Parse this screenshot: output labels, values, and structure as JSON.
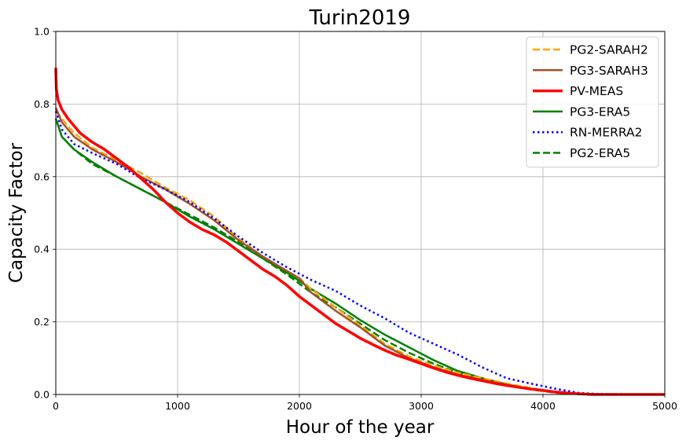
{
  "chart_data": {
    "type": "line",
    "title": "Turin2019",
    "xlabel": "Hour of the year",
    "ylabel": "Capacity Factor",
    "xlim": [
      0,
      5000
    ],
    "ylim": [
      0,
      1.0
    ],
    "xticks": [
      "0",
      "1000",
      "2000",
      "3000",
      "4000",
      "5000"
    ],
    "yticks": [
      "0.0",
      "0.2",
      "0.4",
      "0.6",
      "0.8",
      "1.0"
    ],
    "grid": true,
    "legend_position": "top-right",
    "series": [
      {
        "name": "PG2-SARAH2",
        "color": "#ffa500",
        "style": "dashed",
        "x": [
          0,
          50,
          150,
          300,
          500,
          700,
          900,
          1100,
          1300,
          1500,
          1700,
          1900,
          2000,
          2100,
          2300,
          2500,
          2700,
          2900,
          3100,
          3300,
          3500,
          3700,
          3900,
          4100,
          4300,
          4500,
          5000
        ],
        "y": [
          0.78,
          0.76,
          0.72,
          0.68,
          0.645,
          0.61,
          0.57,
          0.535,
          0.49,
          0.43,
          0.38,
          0.34,
          0.32,
          0.29,
          0.24,
          0.19,
          0.14,
          0.105,
          0.08,
          0.06,
          0.045,
          0.03,
          0.018,
          0.007,
          0.002,
          0.0,
          0.0
        ]
      },
      {
        "name": "PG3-SARAH3",
        "color": "#a0522d",
        "style": "solid",
        "x": [
          0,
          50,
          150,
          300,
          500,
          700,
          900,
          1100,
          1300,
          1500,
          1700,
          1900,
          2000,
          2100,
          2300,
          2500,
          2700,
          2900,
          3100,
          3300,
          3500,
          3700,
          3900,
          4100,
          4300,
          4500,
          5000
        ],
        "y": [
          0.79,
          0.75,
          0.71,
          0.675,
          0.64,
          0.6,
          0.565,
          0.525,
          0.48,
          0.425,
          0.38,
          0.34,
          0.32,
          0.28,
          0.23,
          0.185,
          0.135,
          0.1,
          0.075,
          0.055,
          0.04,
          0.027,
          0.015,
          0.006,
          0.002,
          0.0,
          0.0
        ]
      },
      {
        "name": "PV-MEAS",
        "color": "#ff0000",
        "style": "solid-thick",
        "x": [
          0,
          5,
          20,
          50,
          100,
          200,
          300,
          400,
          500,
          600,
          700,
          800,
          900,
          1000,
          1100,
          1200,
          1300,
          1400,
          1500,
          1600,
          1700,
          1800,
          1900,
          2000,
          2100,
          2200,
          2300,
          2400,
          2500,
          2600,
          2700,
          2800,
          2900,
          3000,
          3100,
          3200,
          3300,
          3400,
          3500,
          3600,
          3700,
          3800,
          3900,
          4000,
          4100,
          4200,
          4300,
          4400,
          5000
        ],
        "y": [
          0.9,
          0.84,
          0.81,
          0.785,
          0.76,
          0.72,
          0.695,
          0.675,
          0.65,
          0.625,
          0.595,
          0.565,
          0.53,
          0.5,
          0.475,
          0.455,
          0.44,
          0.42,
          0.395,
          0.37,
          0.345,
          0.325,
          0.3,
          0.27,
          0.245,
          0.22,
          0.195,
          0.175,
          0.155,
          0.138,
          0.122,
          0.108,
          0.097,
          0.085,
          0.073,
          0.062,
          0.053,
          0.045,
          0.038,
          0.031,
          0.025,
          0.02,
          0.015,
          0.011,
          0.007,
          0.004,
          0.002,
          0.0,
          0.0
        ]
      },
      {
        "name": "PG3-ERA5",
        "color": "#008000",
        "style": "solid",
        "x": [
          0,
          50,
          150,
          300,
          500,
          700,
          900,
          1100,
          1300,
          1500,
          1700,
          1900,
          2100,
          2300,
          2500,
          2700,
          2900,
          3100,
          3300,
          3500,
          3700,
          3900,
          4100,
          4300,
          5000
        ],
        "y": [
          0.76,
          0.71,
          0.675,
          0.64,
          0.6,
          0.565,
          0.53,
          0.49,
          0.455,
          0.415,
          0.375,
          0.335,
          0.29,
          0.25,
          0.205,
          0.165,
          0.13,
          0.095,
          0.065,
          0.045,
          0.028,
          0.015,
          0.006,
          0.001,
          0.0
        ]
      },
      {
        "name": "RN-MERRA2",
        "color": "#0000ff",
        "style": "dotted",
        "x": [
          0,
          50,
          150,
          300,
          500,
          700,
          900,
          1100,
          1300,
          1500,
          1700,
          1900,
          2100,
          2300,
          2500,
          2700,
          2900,
          3100,
          3300,
          3500,
          3700,
          3900,
          4100,
          4300,
          4500,
          5000
        ],
        "y": [
          0.78,
          0.73,
          0.69,
          0.665,
          0.635,
          0.595,
          0.565,
          0.53,
          0.485,
          0.435,
          0.39,
          0.35,
          0.315,
          0.285,
          0.245,
          0.21,
          0.17,
          0.14,
          0.11,
          0.075,
          0.045,
          0.03,
          0.016,
          0.004,
          0.001,
          0.0
        ]
      },
      {
        "name": "PG2-ERA5",
        "color": "#008000",
        "style": "dashed",
        "x": [
          0,
          50,
          150,
          300,
          500,
          700,
          900,
          1100,
          1300,
          1500,
          1700,
          1900,
          2100,
          2300,
          2500,
          2700,
          2900,
          3100,
          3300,
          3500,
          3700,
          3900,
          4100,
          4300,
          5000
        ],
        "y": [
          0.76,
          0.71,
          0.675,
          0.635,
          0.6,
          0.565,
          0.53,
          0.495,
          0.46,
          0.42,
          0.375,
          0.33,
          0.28,
          0.24,
          0.195,
          0.15,
          0.115,
          0.085,
          0.06,
          0.04,
          0.025,
          0.014,
          0.005,
          0.001,
          0.0
        ]
      }
    ]
  }
}
